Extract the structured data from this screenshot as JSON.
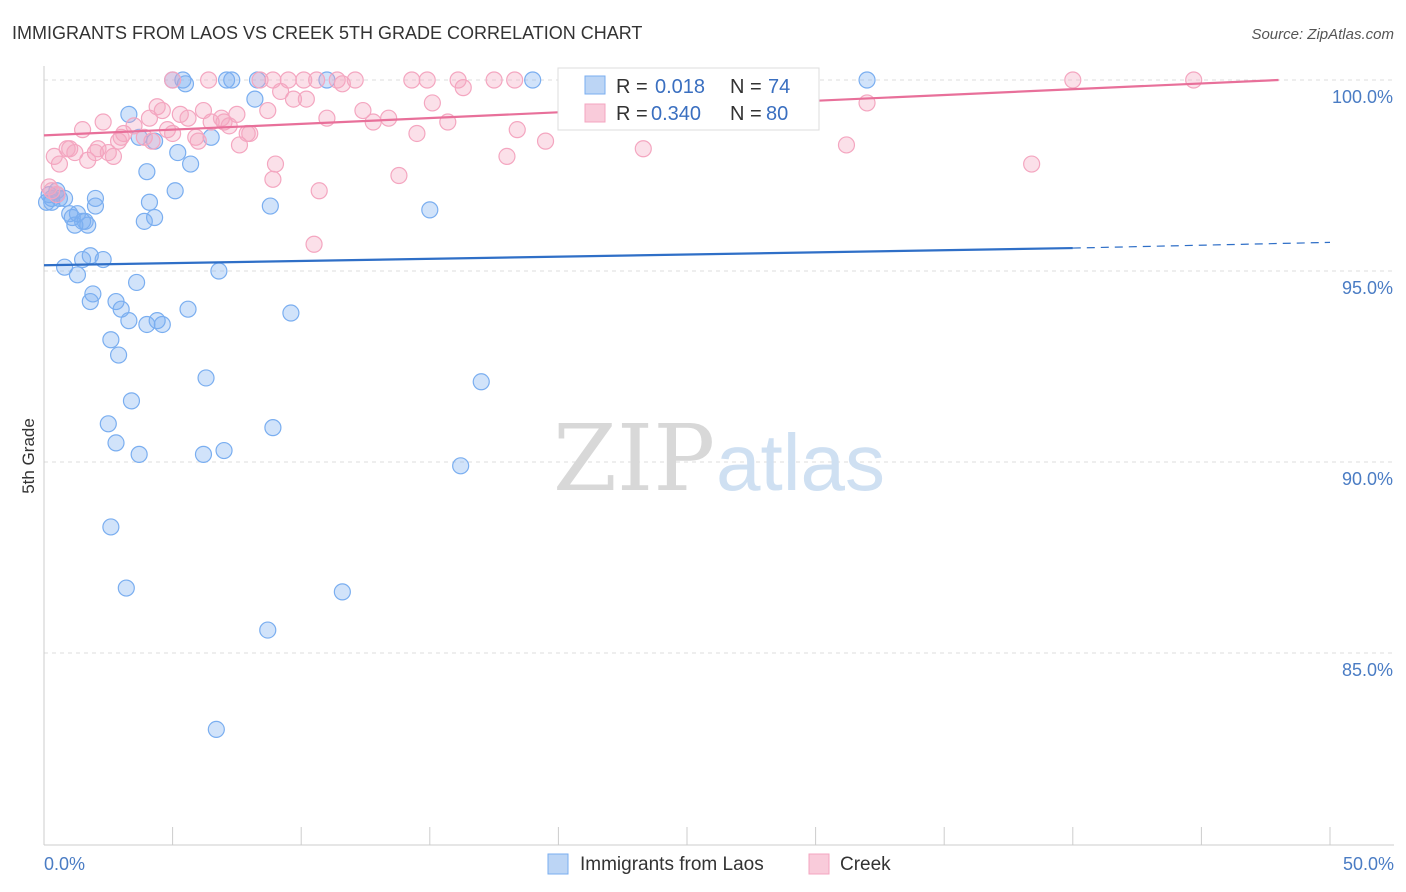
{
  "chart_data": {
    "type": "scatter",
    "title": "IMMIGRANTS FROM LAOS VS CREEK 5TH GRADE CORRELATION CHART",
    "source": "Source: ZipAtlas.com",
    "xlabel": "",
    "ylabel": "5th Grade",
    "xlim": [
      0,
      50
    ],
    "ylim": [
      80.3,
      100.8
    ],
    "y_ticks": [
      {
        "value": 100,
        "label": "100.0%"
      },
      {
        "value": 95,
        "label": "95.0%"
      },
      {
        "value": 90,
        "label": "90.0%"
      },
      {
        "value": 85,
        "label": "85.0%"
      }
    ],
    "x_tick_labels": {
      "min": "0.0%",
      "max": "50.0%"
    },
    "grid": true,
    "legend_position": "top-center",
    "watermark": {
      "zip": "ZIP",
      "atlas": "atlas"
    },
    "series": [
      {
        "name": "Immigrants from Laos",
        "color": "#7aaef0",
        "line_color": "#2f6fc7",
        "R_label": "R =",
        "R": "0.018",
        "N_label": "N =",
        "N": "74",
        "trend": {
          "x0": 0,
          "y0": 95.15,
          "x1": 40,
          "y1": 95.6,
          "x_dash_end": 50,
          "y_dash_end": 95.75
        },
        "points": [
          [
            0.2,
            97.0
          ],
          [
            0.3,
            96.8
          ],
          [
            0.5,
            97.1
          ],
          [
            0.6,
            96.9
          ],
          [
            0.8,
            96.9
          ],
          [
            1.0,
            96.5
          ],
          [
            1.1,
            96.4
          ],
          [
            1.2,
            96.2
          ],
          [
            1.3,
            96.5
          ],
          [
            1.5,
            96.3
          ],
          [
            1.6,
            96.3
          ],
          [
            1.7,
            96.2
          ],
          [
            2.0,
            96.7
          ],
          [
            2.0,
            96.9
          ],
          [
            0.8,
            95.1
          ],
          [
            1.3,
            94.9
          ],
          [
            1.5,
            95.3
          ],
          [
            1.8,
            95.4
          ],
          [
            2.3,
            95.3
          ],
          [
            1.8,
            94.2
          ],
          [
            1.9,
            94.4
          ],
          [
            2.8,
            94.2
          ],
          [
            3.0,
            94.0
          ],
          [
            3.3,
            93.7
          ],
          [
            3.6,
            94.7
          ],
          [
            4.0,
            93.6
          ],
          [
            4.4,
            93.7
          ],
          [
            4.6,
            93.6
          ],
          [
            5.6,
            94.0
          ],
          [
            6.8,
            95.0
          ],
          [
            2.6,
            93.2
          ],
          [
            2.9,
            92.8
          ],
          [
            3.4,
            91.6
          ],
          [
            2.5,
            91.0
          ],
          [
            2.8,
            90.5
          ],
          [
            3.7,
            90.2
          ],
          [
            6.2,
            90.2
          ],
          [
            7.0,
            90.3
          ],
          [
            3.3,
            99.1
          ],
          [
            3.7,
            98.5
          ],
          [
            4.3,
            98.4
          ],
          [
            4.0,
            97.6
          ],
          [
            5.2,
            98.1
          ],
          [
            5.7,
            97.8
          ],
          [
            4.1,
            96.8
          ],
          [
            5.1,
            97.1
          ],
          [
            3.9,
            96.3
          ],
          [
            4.3,
            96.4
          ],
          [
            6.5,
            98.5
          ],
          [
            8.2,
            99.5
          ],
          [
            8.8,
            96.7
          ],
          [
            7.1,
            100.0
          ],
          [
            7.3,
            100.0
          ],
          [
            8.3,
            100.0
          ],
          [
            5.0,
            100.0
          ],
          [
            5.4,
            100.0
          ],
          [
            5.5,
            99.9
          ],
          [
            11.0,
            100.0
          ],
          [
            19.0,
            100.0
          ],
          [
            32.0,
            100.0
          ],
          [
            9.6,
            93.9
          ],
          [
            6.3,
            92.2
          ],
          [
            8.9,
            90.9
          ],
          [
            15.0,
            96.6
          ],
          [
            17.0,
            92.1
          ],
          [
            16.2,
            89.9
          ],
          [
            2.6,
            88.3
          ],
          [
            3.2,
            86.7
          ],
          [
            11.6,
            86.6
          ],
          [
            8.7,
            85.6
          ],
          [
            6.7,
            83.0
          ],
          [
            0.3,
            96.9
          ],
          [
            0.5,
            97.0
          ],
          [
            0.1,
            96.8
          ]
        ]
      },
      {
        "name": "Creek",
        "color": "#f4a6c0",
        "line_color": "#e8709a",
        "R_label": "R =",
        "R": "0.340",
        "N_label": "N =",
        "N": "80",
        "trend": {
          "x0": 0,
          "y0": 98.55,
          "x1": 48,
          "y1": 100.0
        },
        "points": [
          [
            0.4,
            98.0
          ],
          [
            0.6,
            97.8
          ],
          [
            0.9,
            98.2
          ],
          [
            1.2,
            98.1
          ],
          [
            1.5,
            98.7
          ],
          [
            1.7,
            97.9
          ],
          [
            2.1,
            98.2
          ],
          [
            2.3,
            98.9
          ],
          [
            2.5,
            98.1
          ],
          [
            2.7,
            98.0
          ],
          [
            2.9,
            98.4
          ],
          [
            3.1,
            98.6
          ],
          [
            3.5,
            98.8
          ],
          [
            3.9,
            98.5
          ],
          [
            4.2,
            98.4
          ],
          [
            4.4,
            99.3
          ],
          [
            4.6,
            99.2
          ],
          [
            4.8,
            98.7
          ],
          [
            5.0,
            98.6
          ],
          [
            5.3,
            99.1
          ],
          [
            5.6,
            99.0
          ],
          [
            5.9,
            98.5
          ],
          [
            6.2,
            99.2
          ],
          [
            6.5,
            98.9
          ],
          [
            6.9,
            99.0
          ],
          [
            7.2,
            98.8
          ],
          [
            7.5,
            99.1
          ],
          [
            7.6,
            98.3
          ],
          [
            7.9,
            98.6
          ],
          [
            8.7,
            99.2
          ],
          [
            8.9,
            100.0
          ],
          [
            9.5,
            100.0
          ],
          [
            10.1,
            100.0
          ],
          [
            10.6,
            100.0
          ],
          [
            11.4,
            100.0
          ],
          [
            12.1,
            100.0
          ],
          [
            14.3,
            100.0
          ],
          [
            14.9,
            100.0
          ],
          [
            16.1,
            100.0
          ],
          [
            17.5,
            100.0
          ],
          [
            18.3,
            100.0
          ],
          [
            6.4,
            100.0
          ],
          [
            5.0,
            100.0
          ],
          [
            8.4,
            100.0
          ],
          [
            9.7,
            99.5
          ],
          [
            10.2,
            99.5
          ],
          [
            11.6,
            99.9
          ],
          [
            12.4,
            99.2
          ],
          [
            12.8,
            98.9
          ],
          [
            13.4,
            99.0
          ],
          [
            14.5,
            98.6
          ],
          [
            15.1,
            99.4
          ],
          [
            15.7,
            98.9
          ],
          [
            16.3,
            99.8
          ],
          [
            18.0,
            98.0
          ],
          [
            18.4,
            98.7
          ],
          [
            19.5,
            98.4
          ],
          [
            23.3,
            98.2
          ],
          [
            31.2,
            98.3
          ],
          [
            32.0,
            99.4
          ],
          [
            38.4,
            97.8
          ],
          [
            40.0,
            100.0
          ],
          [
            44.7,
            100.0
          ],
          [
            9.0,
            97.8
          ],
          [
            8.9,
            97.4
          ],
          [
            10.7,
            97.1
          ],
          [
            13.8,
            97.5
          ],
          [
            10.5,
            95.7
          ],
          [
            0.3,
            97.1
          ],
          [
            0.5,
            97.0
          ],
          [
            1.0,
            98.2
          ],
          [
            2.0,
            98.1
          ],
          [
            3.0,
            98.5
          ],
          [
            4.1,
            99.0
          ],
          [
            6.0,
            98.4
          ],
          [
            7.0,
            98.9
          ],
          [
            8.0,
            98.6
          ],
          [
            9.2,
            99.7
          ],
          [
            11.0,
            99.0
          ],
          [
            0.2,
            97.2
          ]
        ]
      }
    ]
  }
}
